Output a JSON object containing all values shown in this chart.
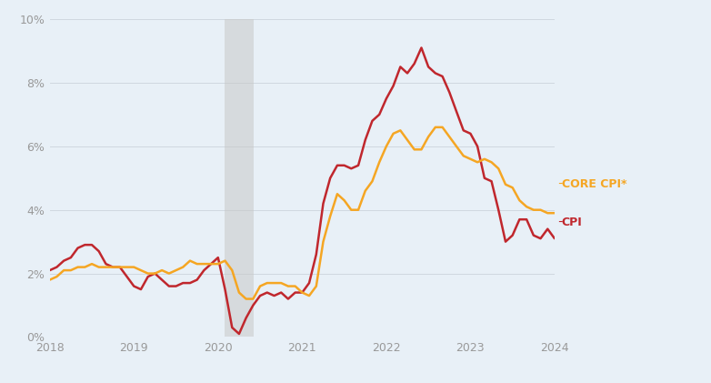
{
  "background_color": "#e8f0f7",
  "plot_bg_color": "#e8f0f7",
  "cpi_color": "#c0272d",
  "core_cpi_color": "#f5a623",
  "recession_color": "#c8c8c8",
  "recession_alpha": 0.55,
  "recession_start": 2020.08,
  "recession_end": 2020.42,
  "ylim": [
    0,
    10
  ],
  "yticks": [
    0,
    2,
    4,
    6,
    8,
    10
  ],
  "ytick_labels": [
    "0%",
    "2%",
    "4%",
    "6%",
    "8%",
    "10%"
  ],
  "xtick_labels": [
    "2018",
    "2019",
    "2020",
    "2021",
    "2022",
    "2023",
    "2024"
  ],
  "xtick_positions": [
    2018,
    2019,
    2020,
    2021,
    2022,
    2023,
    2024
  ],
  "line_width": 1.8,
  "legend_core_label": "CORE CPI*",
  "legend_cpi_label": "CPI",
  "dates": [
    2018.0,
    2018.083,
    2018.167,
    2018.25,
    2018.333,
    2018.417,
    2018.5,
    2018.583,
    2018.667,
    2018.75,
    2018.833,
    2018.917,
    2019.0,
    2019.083,
    2019.167,
    2019.25,
    2019.333,
    2019.417,
    2019.5,
    2019.583,
    2019.667,
    2019.75,
    2019.833,
    2019.917,
    2020.0,
    2020.083,
    2020.167,
    2020.25,
    2020.333,
    2020.417,
    2020.5,
    2020.583,
    2020.667,
    2020.75,
    2020.833,
    2020.917,
    2021.0,
    2021.083,
    2021.167,
    2021.25,
    2021.333,
    2021.417,
    2021.5,
    2021.583,
    2021.667,
    2021.75,
    2021.833,
    2021.917,
    2022.0,
    2022.083,
    2022.167,
    2022.25,
    2022.333,
    2022.417,
    2022.5,
    2022.583,
    2022.667,
    2022.75,
    2022.833,
    2022.917,
    2023.0,
    2023.083,
    2023.167,
    2023.25,
    2023.333,
    2023.417,
    2023.5,
    2023.583,
    2023.667,
    2023.75,
    2023.833,
    2023.917,
    2024.0
  ],
  "cpi": [
    2.1,
    2.2,
    2.4,
    2.5,
    2.8,
    2.9,
    2.9,
    2.7,
    2.3,
    2.2,
    2.2,
    1.9,
    1.6,
    1.5,
    1.9,
    2.0,
    1.8,
    1.6,
    1.6,
    1.7,
    1.7,
    1.8,
    2.1,
    2.3,
    2.5,
    1.5,
    0.3,
    0.1,
    0.6,
    1.0,
    1.3,
    1.4,
    1.3,
    1.4,
    1.2,
    1.4,
    1.4,
    1.7,
    2.6,
    4.2,
    5.0,
    5.4,
    5.4,
    5.3,
    5.4,
    6.2,
    6.8,
    7.0,
    7.5,
    7.9,
    8.5,
    8.3,
    8.6,
    9.1,
    8.5,
    8.3,
    8.2,
    7.7,
    7.1,
    6.5,
    6.4,
    6.0,
    5.0,
    4.9,
    4.0,
    3.0,
    3.2,
    3.7,
    3.7,
    3.2,
    3.1,
    3.4,
    3.1
  ],
  "core_cpi": [
    1.8,
    1.9,
    2.1,
    2.1,
    2.2,
    2.2,
    2.3,
    2.2,
    2.2,
    2.2,
    2.2,
    2.2,
    2.2,
    2.1,
    2.0,
    2.0,
    2.1,
    2.0,
    2.1,
    2.2,
    2.4,
    2.3,
    2.3,
    2.3,
    2.3,
    2.4,
    2.1,
    1.4,
    1.2,
    1.2,
    1.6,
    1.7,
    1.7,
    1.7,
    1.6,
    1.6,
    1.4,
    1.3,
    1.6,
    3.0,
    3.8,
    4.5,
    4.3,
    4.0,
    4.0,
    4.6,
    4.9,
    5.5,
    6.0,
    6.4,
    6.5,
    6.2,
    5.9,
    5.9,
    6.3,
    6.6,
    6.6,
    6.3,
    6.0,
    5.7,
    5.6,
    5.5,
    5.6,
    5.5,
    5.3,
    4.8,
    4.7,
    4.3,
    4.1,
    4.0,
    4.0,
    3.9,
    3.9
  ]
}
